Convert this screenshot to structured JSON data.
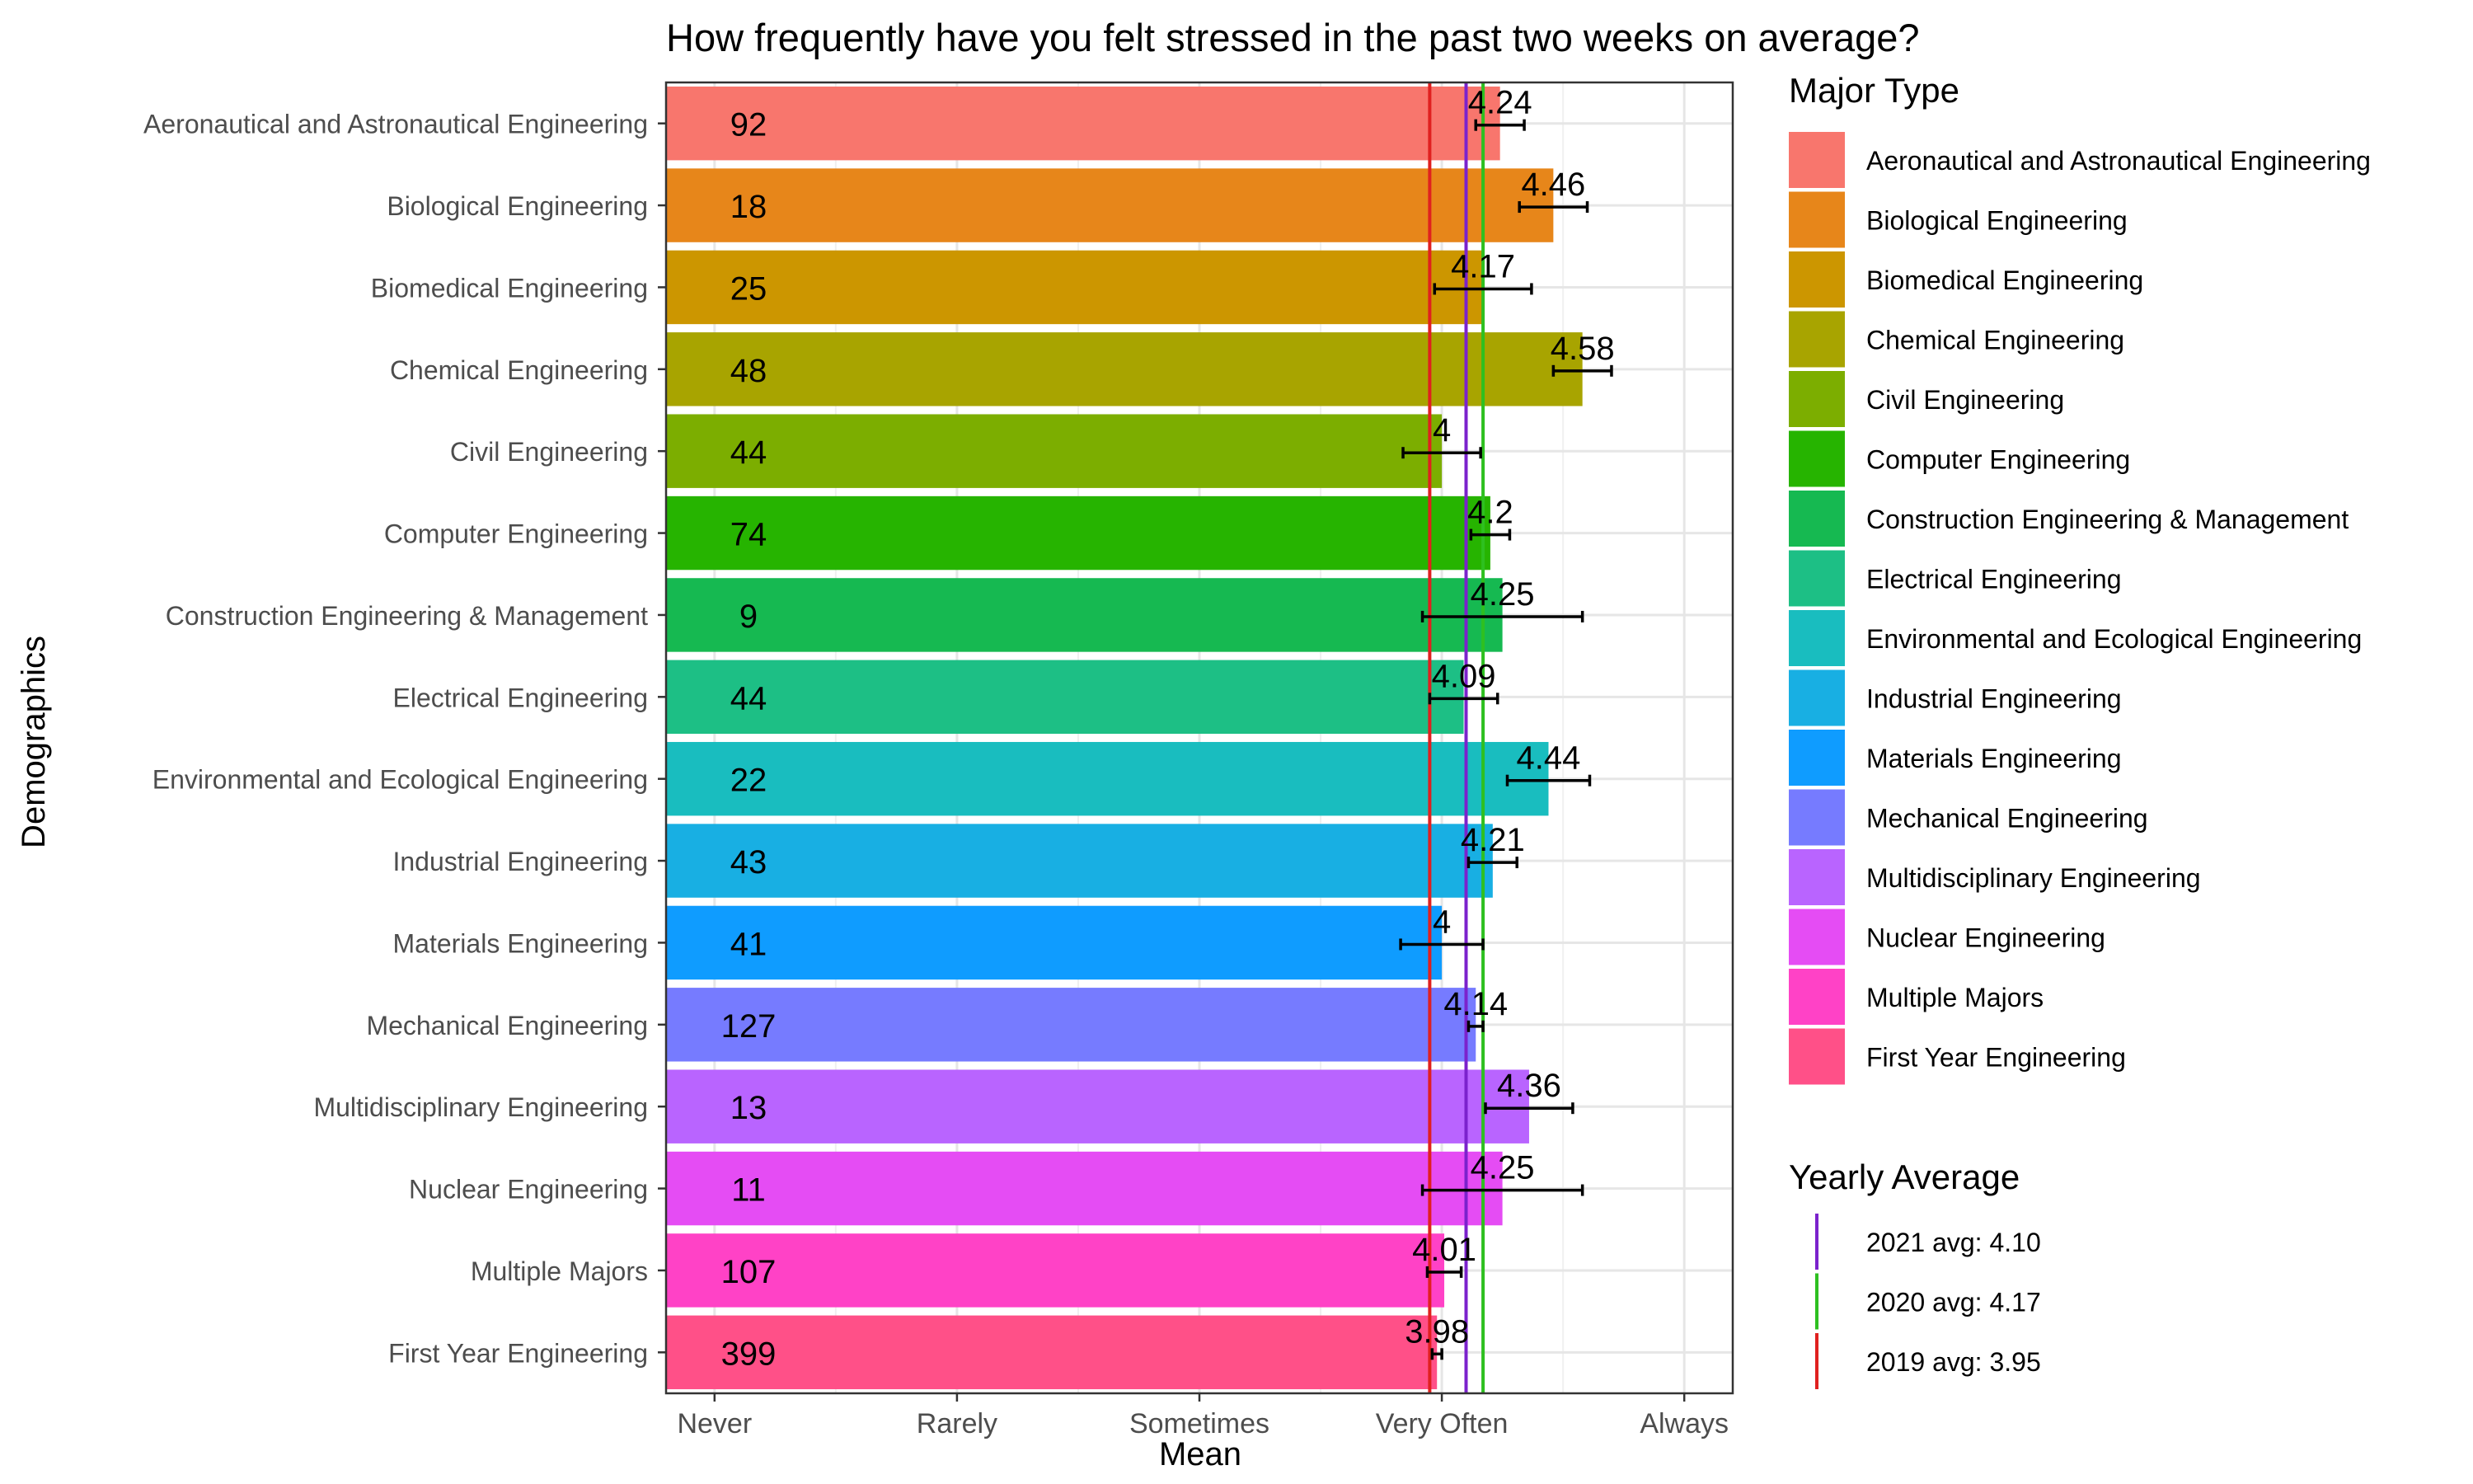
{
  "chart_data": {
    "type": "bar",
    "orientation": "horizontal",
    "title": "How frequently have you felt stressed in the past two weeks on average?",
    "xlabel": "Mean",
    "ylabel": "Demographics",
    "xlim": [
      0.8,
      5.2
    ],
    "x_ticks": [
      {
        "value": 1,
        "label": "Never"
      },
      {
        "value": 2,
        "label": "Rarely"
      },
      {
        "value": 3,
        "label": "Sometimes"
      },
      {
        "value": 4,
        "label": "Very Often"
      },
      {
        "value": 5,
        "label": "Always"
      }
    ],
    "grid": true,
    "legend_position": "right",
    "categories": [
      "Aeronautical and Astronautical Engineering",
      "Biological Engineering",
      "Biomedical Engineering",
      "Chemical Engineering",
      "Civil Engineering",
      "Computer Engineering",
      "Construction Engineering & Management",
      "Electrical Engineering",
      "Environmental and Ecological Engineering",
      "Industrial Engineering",
      "Materials Engineering",
      "Mechanical Engineering",
      "Multidisciplinary Engineering",
      "Nuclear Engineering",
      "Multiple Majors",
      "First Year Engineering"
    ],
    "values": [
      4.24,
      4.46,
      4.17,
      4.58,
      4,
      4.2,
      4.25,
      4.09,
      4.44,
      4.21,
      4,
      4.14,
      4.36,
      4.25,
      4.01,
      3.98
    ],
    "value_labels": [
      "4.24",
      "4.46",
      "4.17",
      "4.58",
      "4",
      "4.2",
      "4.25",
      "4.09",
      "4.44",
      "4.21",
      "4",
      "4.14",
      "4.36",
      "4.25",
      "4.01",
      "3.98"
    ],
    "counts": [
      "92",
      "18",
      "25",
      "48",
      "44",
      "74",
      "9",
      "44",
      "22",
      "43",
      "41",
      "127",
      "13",
      "11",
      "107",
      "399"
    ],
    "error_low": [
      4.14,
      4.32,
      3.97,
      4.46,
      3.84,
      4.12,
      3.92,
      3.95,
      4.27,
      4.11,
      3.83,
      4.11,
      4.18,
      3.92,
      3.94,
      3.96
    ],
    "error_high": [
      4.34,
      4.6,
      4.37,
      4.7,
      4.16,
      4.28,
      4.58,
      4.23,
      4.61,
      4.31,
      4.17,
      4.17,
      4.54,
      4.58,
      4.08,
      4.0
    ],
    "colors": [
      "#F8766D",
      "#E7861A",
      "#CC9600",
      "#A8A400",
      "#7CAE00",
      "#26B400",
      "#16B951",
      "#1DBF85",
      "#19BDBF",
      "#18AFE3",
      "#0F9CFF",
      "#767BFF",
      "#B964FF",
      "#E54CF4",
      "#FF42C6",
      "#FF5088"
    ],
    "legend_title": "Major Type",
    "reference_lines": [
      {
        "label": "2021 avg: 4.10",
        "value": 4.1,
        "color": "#7B22CC"
      },
      {
        "label": "2020 avg: 4.17",
        "value": 4.17,
        "color": "#2EC020"
      },
      {
        "label": "2019 avg: 3.95",
        "value": 3.95,
        "color": "#E0201F"
      }
    ],
    "reference_legend_title": "Yearly Average"
  }
}
